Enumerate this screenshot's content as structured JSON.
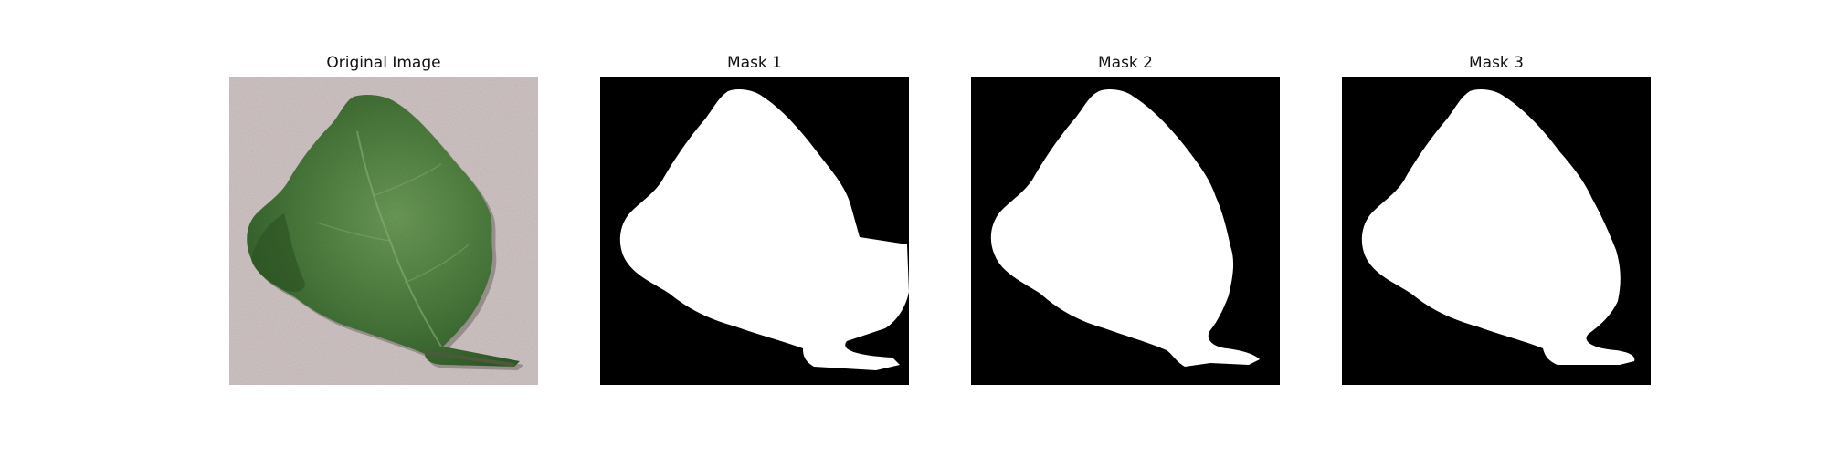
{
  "figure": {
    "panels": [
      {
        "title": "Original Image",
        "content": "leaf-photo"
      },
      {
        "title": "Mask 1",
        "content": "binary-mask"
      },
      {
        "title": "Mask 2",
        "content": "binary-mask"
      },
      {
        "title": "Mask 3",
        "content": "binary-mask"
      }
    ]
  },
  "colors": {
    "background": "#ffffff",
    "mask_background": "#000000",
    "mask_foreground": "#ffffff",
    "leaf_dark": "#2f5a28",
    "leaf_mid": "#4a7a3c",
    "leaf_light": "#6b9a58",
    "photo_background": "#cfc3c3"
  }
}
